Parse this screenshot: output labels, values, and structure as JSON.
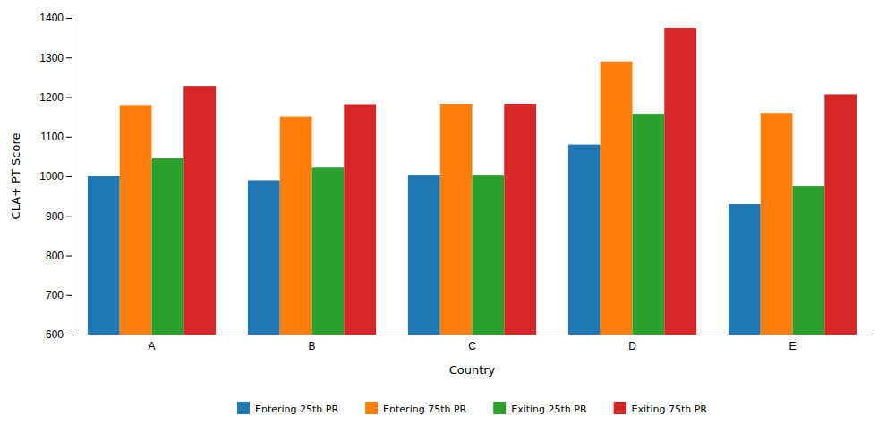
{
  "chart_data": {
    "type": "bar",
    "categories": [
      "A",
      "B",
      "C",
      "D",
      "E"
    ],
    "series": [
      {
        "name": "Entering 25th PR",
        "values": [
          1000,
          990,
          1002,
          1080,
          930
        ]
      },
      {
        "name": "Entering 75th PR",
        "values": [
          1180,
          1150,
          1183,
          1290,
          1160
        ]
      },
      {
        "name": "Exiting 25th PR",
        "values": [
          1045,
          1022,
          1002,
          1158,
          975
        ]
      },
      {
        "name": "Exiting 75th PR",
        "values": [
          1228,
          1182,
          1183,
          1375,
          1207
        ]
      }
    ],
    "x_label": "Country",
    "y_label": "CLA+ PT Score",
    "ylim": [
      600,
      1400
    ],
    "yticks": [
      600,
      700,
      800,
      900,
      1000,
      1100,
      1200,
      1300,
      1400
    ],
    "grid": false,
    "legend": "bottom"
  }
}
